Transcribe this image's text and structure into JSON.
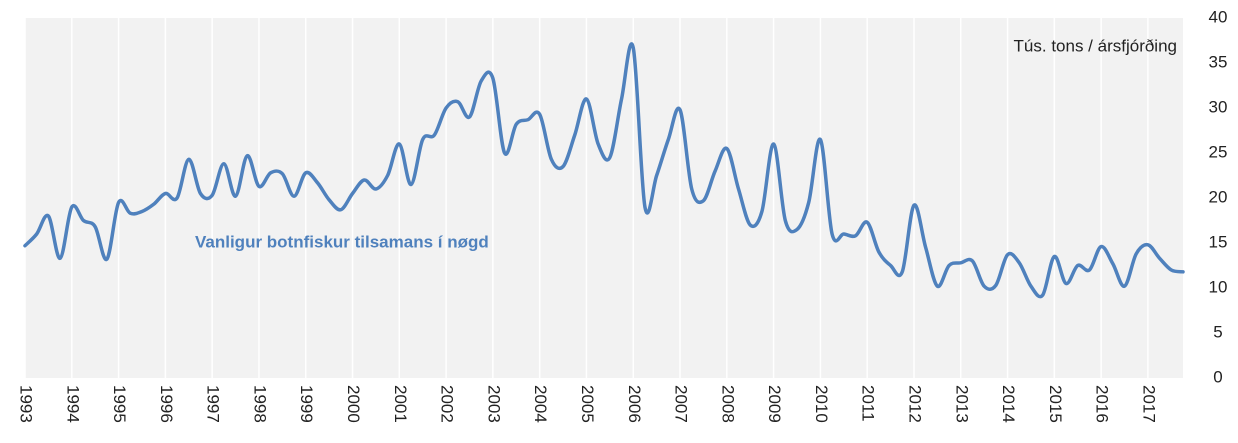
{
  "chart_data": {
    "type": "line",
    "annotation": "Tús. tons / ársfjórðing",
    "x": [
      1993,
      1993.25,
      1993.5,
      1993.75,
      1994,
      1994.25,
      1994.5,
      1994.75,
      1995,
      1995.25,
      1995.5,
      1995.75,
      1996,
      1996.25,
      1996.5,
      1996.75,
      1997,
      1997.25,
      1997.5,
      1997.75,
      1998,
      1998.25,
      1998.5,
      1998.75,
      1999,
      1999.25,
      1999.5,
      1999.75,
      2000,
      2000.25,
      2000.5,
      2000.75,
      2001,
      2001.25,
      2001.5,
      2001.75,
      2002,
      2002.25,
      2002.5,
      2002.75,
      2003,
      2003.25,
      2003.5,
      2003.75,
      2004,
      2004.25,
      2004.5,
      2004.75,
      2005,
      2005.25,
      2005.5,
      2005.75,
      2006,
      2006.25,
      2006.5,
      2006.75,
      2007,
      2007.25,
      2007.5,
      2007.75,
      2008,
      2008.25,
      2008.5,
      2008.75,
      2009,
      2009.25,
      2009.5,
      2009.75,
      2010,
      2010.25,
      2010.5,
      2010.75,
      2011,
      2011.25,
      2011.5,
      2011.75,
      2012,
      2012.25,
      2012.5,
      2012.75,
      2013,
      2013.25,
      2013.5,
      2013.75,
      2014,
      2014.25,
      2014.5,
      2014.75,
      2015,
      2015.25,
      2015.5,
      2015.75,
      2016,
      2016.25,
      2016.5,
      2016.75,
      2017,
      2017.25,
      2017.5,
      2017.75
    ],
    "series": [
      {
        "name": "Vanligur botnfiskur tilsamans í nøgd",
        "color": "#4f81bd",
        "values": [
          14.7,
          16,
          18,
          13.3,
          19,
          17.5,
          16.8,
          13.2,
          19.5,
          18.3,
          18.5,
          19.3,
          20.5,
          20,
          24.3,
          20.5,
          20.3,
          23.8,
          20.2,
          24.7,
          21.3,
          22.8,
          22.7,
          20.2,
          22.8,
          21.7,
          19.8,
          18.7,
          20.5,
          22,
          21,
          22.5,
          26,
          21.5,
          26.5,
          27,
          30,
          30.7,
          29,
          33,
          33.3,
          25,
          28.2,
          28.7,
          29.3,
          24.3,
          23.5,
          27,
          31,
          26,
          24.5,
          31,
          36.7,
          19,
          22.5,
          26.5,
          29.8,
          21,
          19.7,
          23,
          25.5,
          21,
          17,
          18.5,
          26,
          17.5,
          16.5,
          19.5,
          26.5,
          16,
          16,
          15.8,
          17.3,
          14,
          12.5,
          11.8,
          19.2,
          14.5,
          10.2,
          12.5,
          12.8,
          13,
          10.2,
          10.3,
          13.7,
          12.8,
          10.2,
          9.2,
          13.5,
          10.5,
          12.5,
          12,
          14.6,
          12.7,
          10.2,
          13.8,
          14.8,
          13.3,
          12,
          11.8
        ]
      }
    ],
    "xlim": [
      1993,
      2017.75
    ],
    "xticks": [
      1993,
      1994,
      1995,
      1996,
      1997,
      1998,
      1999,
      2000,
      2001,
      2002,
      2003,
      2004,
      2005,
      2006,
      2007,
      2008,
      2009,
      2010,
      2011,
      2012,
      2013,
      2014,
      2015,
      2016,
      2017
    ],
    "ylim": [
      0,
      40
    ],
    "yticks": [
      0,
      5,
      10,
      15,
      20,
      25,
      30,
      35,
      40
    ],
    "grid": "x",
    "background": "#f2f2f2"
  }
}
